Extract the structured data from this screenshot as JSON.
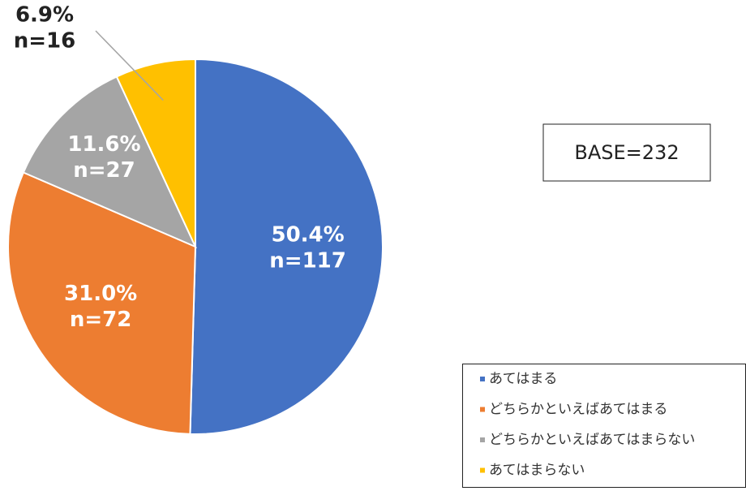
{
  "chart_data": {
    "type": "pie",
    "categories": [
      "あてはまる",
      "どちらかといえばあてはまる",
      "どちらかといえばあてはまらない",
      "あてはまらない"
    ],
    "values": [
      50.4,
      31.0,
      11.6,
      6.9
    ],
    "value_labels": [
      "50.4%",
      "31.0%",
      "11.6%",
      "6.9%"
    ],
    "count_labels": [
      "n=117",
      "n=72",
      "n=27",
      "n=16"
    ],
    "colors": [
      "#4472c4",
      "#ed7d31",
      "#a5a5a5",
      "#ffc000"
    ],
    "annotation": "BASE=232",
    "legend": "bottom-right"
  }
}
